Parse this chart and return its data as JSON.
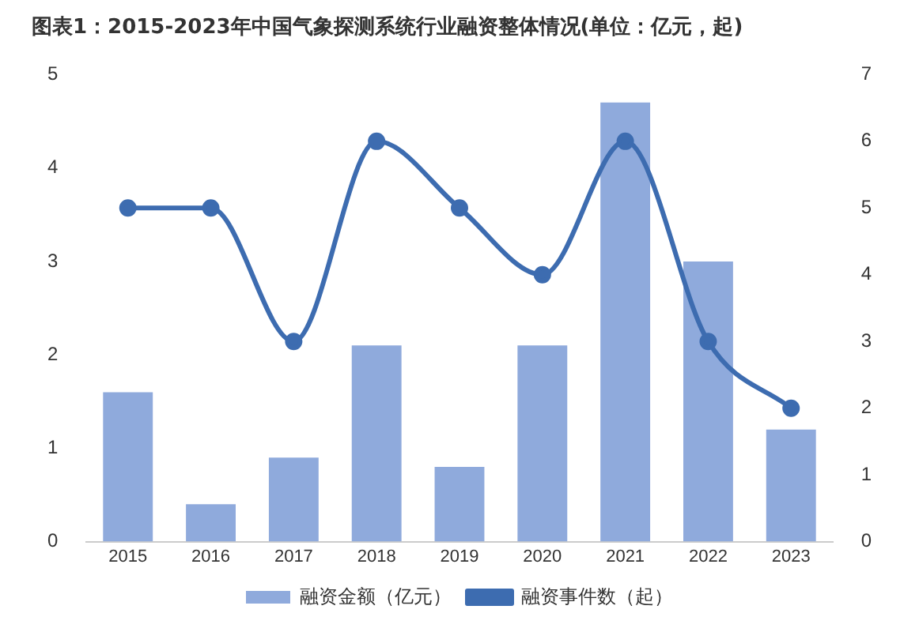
{
  "chart_data": {
    "type": "bar",
    "title": "图表1：2015-2023年中国气象探测系统行业融资整体情况(单位：亿元，起)",
    "categories": [
      "2015",
      "2016",
      "2017",
      "2018",
      "2019",
      "2020",
      "2021",
      "2022",
      "2023"
    ],
    "series": [
      {
        "name": "融资金额（亿元）",
        "color": "#8faadc",
        "values": [
          1.6,
          0.4,
          0.9,
          2.1,
          0.8,
          2.1,
          4.7,
          3.0,
          1.2
        ]
      },
      {
        "name": "融资事件数（起）",
        "type": "line",
        "axis": "y2",
        "color": "#3d6cb0",
        "values": [
          5,
          5,
          3,
          6,
          5,
          4,
          6,
          3,
          2
        ]
      }
    ],
    "ylim": [
      0,
      5
    ],
    "yticks": [
      0,
      1,
      2,
      3,
      4,
      5
    ],
    "y2lim": [
      0,
      7
    ],
    "y2ticks": [
      0,
      1,
      2,
      3,
      4,
      5,
      6,
      7
    ],
    "grid": false,
    "legend": "bottom",
    "marker": "circle",
    "line_style": "solid"
  }
}
